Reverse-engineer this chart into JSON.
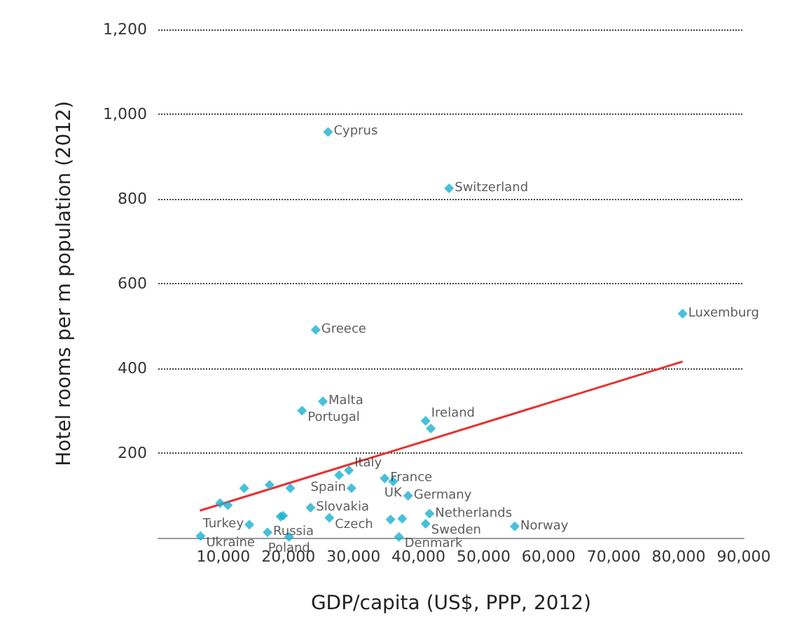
{
  "chart_data": {
    "type": "scatter",
    "xlabel": "GDP/capita (US$, PPP, 2012)",
    "ylabel": "Hotel rooms per m population (2012)",
    "xlim": [
      0,
      90000
    ],
    "xticks": [
      {
        "value": 10000,
        "label": "10,000"
      },
      {
        "value": 20000,
        "label": "20,000"
      },
      {
        "value": 30000,
        "label": "30,000"
      },
      {
        "value": 40000,
        "label": "40,000"
      },
      {
        "value": 50000,
        "label": "50,000"
      },
      {
        "value": 60000,
        "label": "60,000"
      },
      {
        "value": 70000,
        "label": "70,000"
      },
      {
        "value": 80000,
        "label": "80,000"
      },
      {
        "value": 90000,
        "label": "90,000"
      }
    ],
    "ylim": [
      0,
      1200
    ],
    "yticks": [
      {
        "value": 200,
        "label": "200"
      },
      {
        "value": 400,
        "label": "400"
      },
      {
        "value": 600,
        "label": "600"
      },
      {
        "value": 800,
        "label": "800"
      },
      {
        "value": 1000,
        "label": "1,000"
      },
      {
        "value": 1200,
        "label": "1,200"
      }
    ],
    "grid": "y",
    "marker": "diamond",
    "series": [
      {
        "type": "scatter",
        "color": "#1ab0d0",
        "x": [
          26100,
          44700,
          80600,
          24200,
          25300,
          22100,
          41100,
          41900,
          13200,
          17100,
          20300,
          27800,
          29300,
          29700,
          34800,
          36100,
          38400,
          9500,
          10700,
          23400,
          26300,
          18800,
          19200,
          14000,
          16800,
          6500,
          20100,
          35700,
          37500,
          41700,
          41100,
          37000,
          54800
        ],
        "values": [
          958,
          825,
          529,
          491,
          322,
          300,
          276,
          258,
          117,
          125,
          117,
          148,
          159,
          117,
          140,
          133,
          99,
          82,
          77,
          71,
          47,
          50,
          52,
          31,
          13,
          4,
          2,
          43,
          45,
          57,
          33,
          2,
          27
        ]
      },
      {
        "type": "line",
        "color": "#e8302f",
        "marker": "none",
        "x": [
          6400,
          80600
        ],
        "values": [
          64,
          416
        ]
      }
    ],
    "annotations": [
      {
        "text": "Cyprus",
        "x": 26100,
        "y": 958
      },
      {
        "text": "Switzerland",
        "x": 44700,
        "y": 825
      },
      {
        "text": "Luxemburg",
        "x": 80600,
        "y": 529
      },
      {
        "text": "Greece",
        "x": 24200,
        "y": 491
      },
      {
        "text": "Malta",
        "x": 25300,
        "y": 322
      },
      {
        "text": "Portugal",
        "x": 22100,
        "y": 300
      },
      {
        "text": "Ireland",
        "x": 41100,
        "y": 276
      },
      {
        "text": "Italy",
        "x": 29300,
        "y": 159
      },
      {
        "text": "France",
        "x": 34800,
        "y": 140
      },
      {
        "text": "UK",
        "x": 36100,
        "y": 133
      },
      {
        "text": "Spain",
        "x": 29700,
        "y": 117
      },
      {
        "text": "Germany",
        "x": 38400,
        "y": 99
      },
      {
        "text": "Slovakia",
        "x": 23400,
        "y": 71
      },
      {
        "text": "Czech",
        "x": 26300,
        "y": 47
      },
      {
        "text": "Turkey",
        "x": 14000,
        "y": 31
      },
      {
        "text": "Netherlands",
        "x": 41700,
        "y": 57
      },
      {
        "text": "Sweden",
        "x": 41100,
        "y": 33
      },
      {
        "text": "Norway",
        "x": 54800,
        "y": 27
      },
      {
        "text": "Ukraine",
        "x": 6500,
        "y": 4
      },
      {
        "text": "Russia",
        "x": 16800,
        "y": 13
      },
      {
        "text": "Poland",
        "x": 20100,
        "y": 2
      },
      {
        "text": "Denmark",
        "x": 37000,
        "y": 2
      }
    ]
  }
}
